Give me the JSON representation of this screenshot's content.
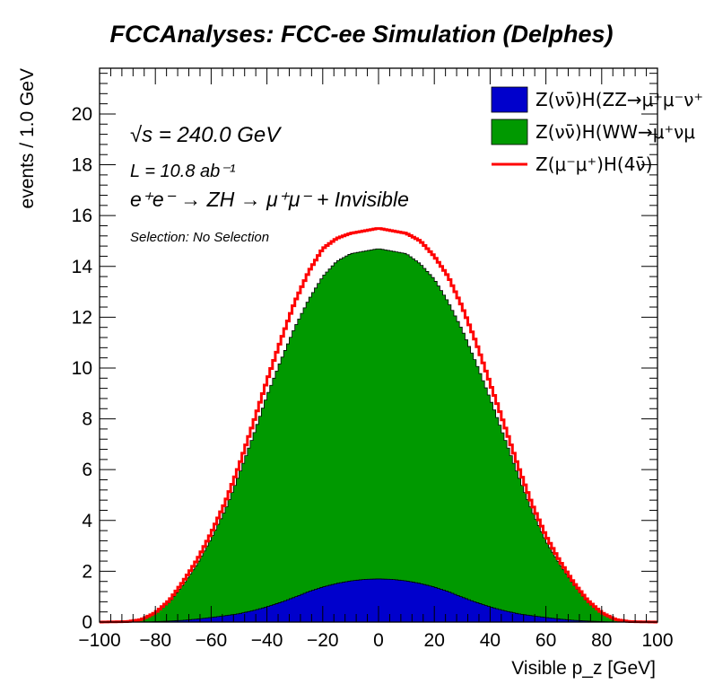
{
  "chart_data": {
    "type": "area",
    "title": "FCCAnalyses: FCC-ee Simulation (Delphes)",
    "xlabel": "Visible p_z [GeV]",
    "ylabel": "events / 1.0 GeV",
    "xlim": [
      -100,
      100
    ],
    "ylim": [
      0,
      21.8
    ],
    "x_ticks": [
      "−100",
      "−80",
      "−60",
      "−40",
      "−20",
      "0",
      "20",
      "40",
      "60",
      "80",
      "100"
    ],
    "y_ticks": [
      "0",
      "2",
      "4",
      "6",
      "8",
      "10",
      "12",
      "14",
      "16",
      "18",
      "20"
    ],
    "annotations": {
      "sqrt_s": "√s = 240.0 GeV",
      "lumi": "L = 10.8 ab⁻¹",
      "process": "e⁺e⁻ → ZH → μ⁺μ⁻ + Invisible",
      "selection": "Selection: No Selection"
    },
    "x": [
      -100,
      -90,
      -85,
      -80,
      -75,
      -70,
      -65,
      -60,
      -55,
      -50,
      -45,
      -40,
      -35,
      -30,
      -25,
      -20,
      -15,
      -10,
      -5,
      0,
      5,
      10,
      15,
      20,
      25,
      30,
      35,
      40,
      45,
      50,
      55,
      60,
      65,
      70,
      75,
      80,
      85,
      90,
      100
    ],
    "series": [
      {
        "name": "Z(νν̄)H(ZZ→μ⁺μ⁻ν⁺",
        "style": "filled",
        "color": "#0000cc",
        "values": [
          0,
          0,
          0,
          0.02,
          0.04,
          0.07,
          0.12,
          0.18,
          0.25,
          0.33,
          0.45,
          0.6,
          0.78,
          0.98,
          1.2,
          1.38,
          1.52,
          1.62,
          1.68,
          1.7,
          1.68,
          1.62,
          1.52,
          1.38,
          1.2,
          0.98,
          0.78,
          0.6,
          0.45,
          0.33,
          0.25,
          0.18,
          0.12,
          0.07,
          0.04,
          0.02,
          0,
          0,
          0
        ]
      },
      {
        "name": "Z(νν̄)H(WW→μ⁺νμ",
        "style": "filled",
        "color": "#009900",
        "values": [
          0,
          0.02,
          0.1,
          0.35,
          0.8,
          1.5,
          2.3,
          3.3,
          4.4,
          5.8,
          7.3,
          8.9,
          10.3,
          11.6,
          12.7,
          13.6,
          14.2,
          14.5,
          14.6,
          14.7,
          14.6,
          14.5,
          14.1,
          13.5,
          12.6,
          11.5,
          10.2,
          8.8,
          7.3,
          5.8,
          4.4,
          3.2,
          2.3,
          1.5,
          0.8,
          0.35,
          0.1,
          0.02,
          0
        ]
      },
      {
        "name": "Z(μ⁻μ⁺)H(4ν̄)",
        "style": "line",
        "color": "#ff0000",
        "values": [
          0,
          0.02,
          0.1,
          0.37,
          0.85,
          1.6,
          2.45,
          3.5,
          4.7,
          6.15,
          7.8,
          9.5,
          11.1,
          12.6,
          13.8,
          14.7,
          15.1,
          15.3,
          15.4,
          15.5,
          15.4,
          15.3,
          15.0,
          14.4,
          13.6,
          12.4,
          11.0,
          9.4,
          7.8,
          6.15,
          4.65,
          3.4,
          2.4,
          1.55,
          0.85,
          0.37,
          0.1,
          0.02,
          0
        ]
      }
    ],
    "legend_placement": "top-right",
    "grid": false
  }
}
